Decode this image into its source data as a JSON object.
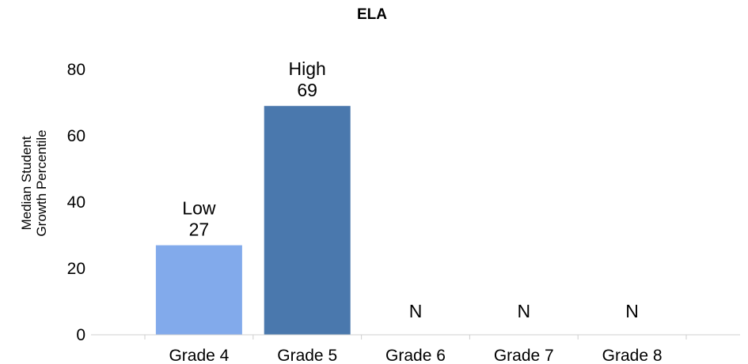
{
  "chart_data": {
    "type": "bar",
    "title": "ELA",
    "xlabel": "",
    "ylabel": [
      "Median Student",
      "Growth Percentile"
    ],
    "categories": [
      "Grade 4",
      "Grade 5",
      "Grade 6",
      "Grade 7",
      "Grade 8"
    ],
    "values": [
      27,
      69,
      null,
      null,
      null
    ],
    "data_labels": [
      [
        "Low",
        "27"
      ],
      [
        "High",
        "69"
      ],
      [
        "N"
      ],
      [
        "N"
      ],
      [
        "N"
      ]
    ],
    "bar_colors": [
      "#82AAEB",
      "#4A78AD",
      null,
      null,
      null
    ],
    "ylim": [
      0,
      80
    ],
    "yticks": [
      "0",
      "20",
      "40",
      "60",
      "80"
    ],
    "grid": false,
    "legend": "none"
  }
}
